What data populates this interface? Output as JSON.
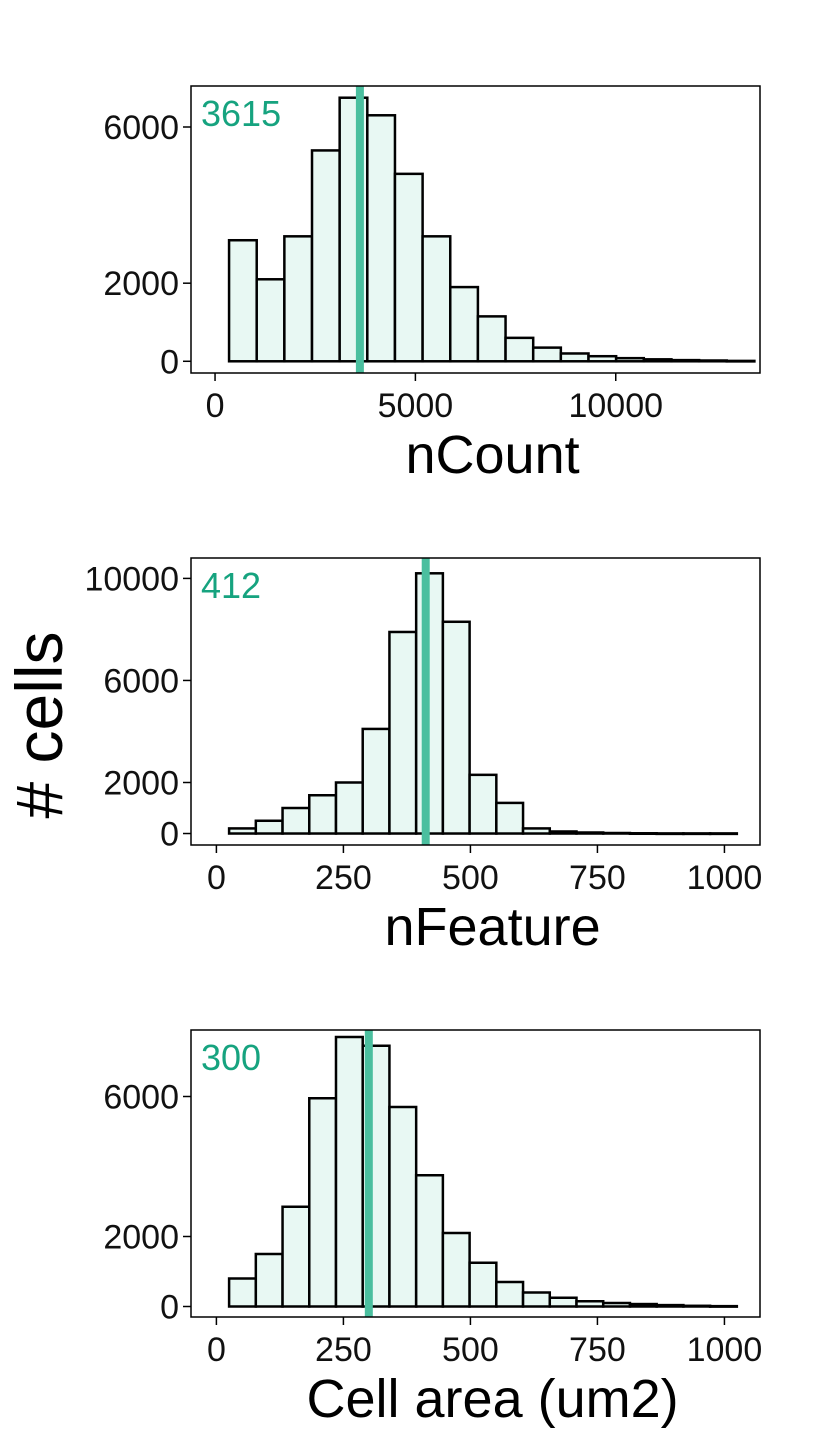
{
  "ylabel": "# cells",
  "colors": {
    "bar_fill": "#e8f8f3",
    "bar_stroke": "#000000",
    "median_line": "#4bbf9f",
    "median_text": "#16a37f"
  },
  "chart_data": [
    {
      "type": "bar",
      "xlabel": "nCount",
      "median": 3615,
      "median_label": "3615",
      "xlim": [
        -600,
        13600
      ],
      "ylim": [
        -300,
        7050
      ],
      "xticks": [
        0,
        5000,
        10000
      ],
      "xtick_labels": [
        "0",
        "5000",
        "10000"
      ],
      "yticks": [
        0,
        2000,
        6000
      ],
      "ytick_labels": [
        "0",
        "2000",
        "6000"
      ],
      "bin_start": 350,
      "bin_width": 690,
      "values": [
        3100,
        2100,
        3200,
        5400,
        6750,
        6300,
        4800,
        3200,
        1900,
        1150,
        600,
        350,
        200,
        130,
        80,
        50,
        30,
        20,
        10
      ]
    },
    {
      "type": "bar",
      "xlabel": "nFeature",
      "median": 412,
      "median_label": "412",
      "xlim": [
        -50,
        1070
      ],
      "ylim": [
        -450,
        10800
      ],
      "xticks": [
        0,
        250,
        500,
        750,
        1000
      ],
      "xtick_labels": [
        "0",
        "250",
        "500",
        "750",
        "1000"
      ],
      "yticks": [
        0,
        2000,
        6000,
        10000
      ],
      "ytick_labels": [
        "0",
        "2000",
        "6000",
        "10000"
      ],
      "bin_start": 25,
      "bin_width": 52.6,
      "values": [
        200,
        500,
        1000,
        1500,
        2000,
        4100,
        7900,
        10200,
        8300,
        2300,
        1200,
        200,
        80,
        40,
        20,
        10,
        5,
        5,
        5
      ]
    },
    {
      "type": "bar",
      "xlabel": "Cell area (um2)",
      "median": 300,
      "median_label": "300",
      "xlim": [
        -50,
        1070
      ],
      "ylim": [
        -300,
        7900
      ],
      "xticks": [
        0,
        250,
        500,
        750,
        1000
      ],
      "xtick_labels": [
        "0",
        "250",
        "500",
        "750",
        "1000"
      ],
      "yticks": [
        0,
        2000,
        6000
      ],
      "ytick_labels": [
        "0",
        "2000",
        "6000"
      ],
      "bin_start": 25,
      "bin_width": 52.6,
      "values": [
        800,
        1500,
        2850,
        5950,
        7700,
        7450,
        5700,
        3750,
        2100,
        1250,
        700,
        400,
        250,
        150,
        100,
        70,
        40,
        20,
        10
      ]
    }
  ]
}
